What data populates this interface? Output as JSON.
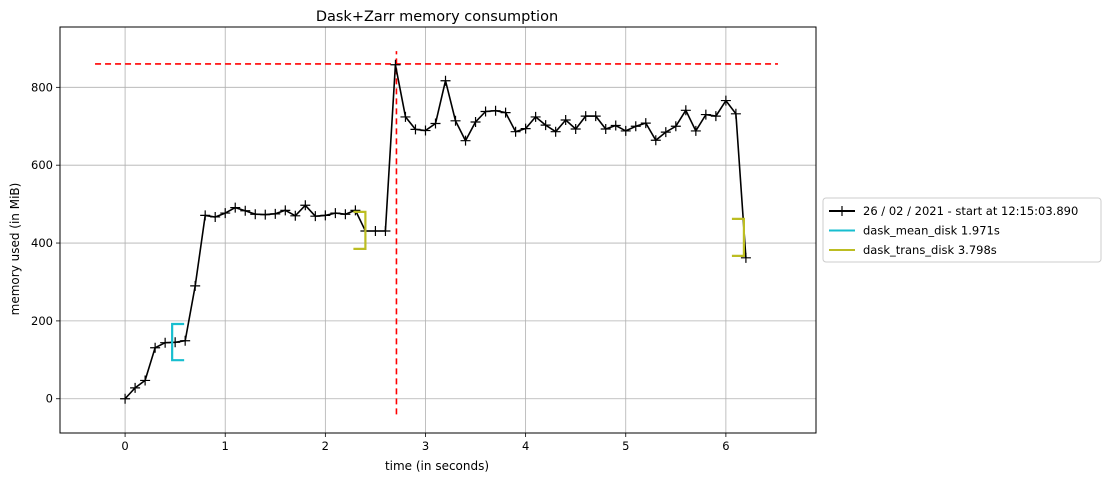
{
  "chart_data": {
    "type": "line",
    "title": "Dask+Zarr memory consumption",
    "xlabel": "time (in seconds)",
    "ylabel": "memory used (in MiB)",
    "xlim": [
      -0.65,
      6.9
    ],
    "ylim": [
      -88,
      955
    ],
    "x_ticks": [
      0,
      1,
      2,
      3,
      4,
      5,
      6
    ],
    "y_ticks": [
      0,
      200,
      400,
      600,
      800
    ],
    "grid": true,
    "legend_position": "right, outside plot",
    "colors": {
      "memory_line": "#000000",
      "threshold": "#ff0000",
      "mean_disk": "#17becf",
      "trans_disk": "#bcbd22",
      "grid": "#b0b0b0"
    },
    "series": [
      {
        "name": "26 / 02 / 2021 - start at 12:15:03.890",
        "style": "line-with-plus-markers",
        "x": [
          0.0,
          0.1,
          0.2,
          0.3,
          0.4,
          0.5,
          0.6,
          0.7,
          0.8,
          0.9,
          1.0,
          1.1,
          1.2,
          1.3,
          1.4,
          1.5,
          1.6,
          1.7,
          1.8,
          1.9,
          2.0,
          2.1,
          2.2,
          2.3,
          2.4,
          2.5,
          2.6,
          2.7,
          2.8,
          2.9,
          3.0,
          3.1,
          3.2,
          3.3,
          3.4,
          3.5,
          3.6,
          3.7,
          3.8,
          3.9,
          4.0,
          4.1,
          4.2,
          4.3,
          4.4,
          4.5,
          4.6,
          4.7,
          4.8,
          4.9,
          5.0,
          5.1,
          5.2,
          5.3,
          5.4,
          5.5,
          5.6,
          5.7,
          5.8,
          5.9,
          6.0,
          6.1,
          6.2
        ],
        "y": [
          0,
          28,
          47,
          131,
          144,
          145,
          149,
          290,
          471,
          467,
          477,
          491,
          483,
          474,
          473,
          475,
          484,
          470,
          497,
          469,
          471,
          477,
          474,
          484,
          431,
          431,
          431,
          858,
          724,
          692,
          689,
          707,
          817,
          714,
          663,
          711,
          738,
          740,
          735,
          686,
          694,
          724,
          703,
          686,
          716,
          693,
          726,
          726,
          693,
          702,
          688,
          700,
          708,
          664,
          685,
          700,
          741,
          688,
          730,
          726,
          766,
          732,
          362
        ]
      },
      {
        "name": "dask_mean_disk 1.971s",
        "style": "bracket",
        "x": 0.47,
        "y_range": [
          99,
          192
        ]
      },
      {
        "name": "dask_trans_disk 3.798s",
        "style": "bracket",
        "brackets": [
          {
            "x": 2.4,
            "y_range": [
              385,
              480
            ]
          },
          {
            "x": 6.18,
            "y_range": [
              367,
              462
            ]
          }
        ]
      }
    ],
    "reference_lines": [
      {
        "orientation": "horizontal",
        "y": 860,
        "x_range": [
          -0.3,
          6.52
        ],
        "style": "dashed"
      },
      {
        "orientation": "vertical",
        "x": 2.71,
        "y_range": [
          -40,
          893
        ],
        "style": "dashed"
      }
    ]
  }
}
